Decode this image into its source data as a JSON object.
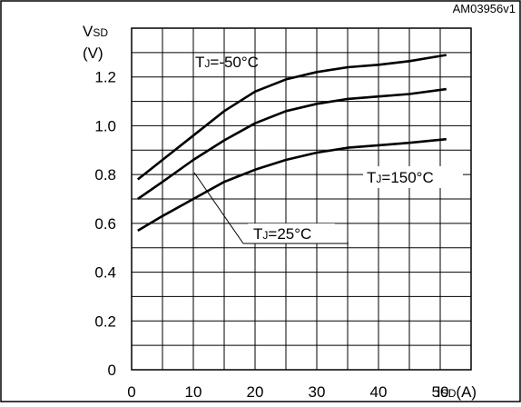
{
  "doc_id": "AM03956v1",
  "chart_data": {
    "type": "line",
    "y_axis": {
      "symbol": "V",
      "subscript": "SD",
      "unit": "(V)",
      "ticks": [
        "0",
        "0.2",
        "0.4",
        "0.6",
        "0.8",
        "1.0",
        "1.2"
      ],
      "ylim": [
        0,
        1.4
      ]
    },
    "x_axis": {
      "symbol": "I",
      "subscript": "SD",
      "unit": "(A)",
      "ticks": [
        "0",
        "10",
        "20",
        "30",
        "40",
        "50"
      ],
      "xlim": [
        0,
        55
      ]
    },
    "grid": true,
    "series": [
      {
        "name": "TJ=-50°C",
        "x": [
          1,
          5,
          10,
          15,
          20,
          25,
          30,
          35,
          40,
          45,
          51
        ],
        "y": [
          0.78,
          0.86,
          0.96,
          1.06,
          1.14,
          1.19,
          1.22,
          1.24,
          1.25,
          1.265,
          1.29
        ]
      },
      {
        "name": "TJ=25°C",
        "x": [
          1,
          5,
          10,
          15,
          20,
          25,
          30,
          35,
          40,
          45,
          51
        ],
        "y": [
          0.7,
          0.77,
          0.86,
          0.94,
          1.01,
          1.06,
          1.09,
          1.11,
          1.12,
          1.13,
          1.15
        ]
      },
      {
        "name": "TJ=150°C",
        "x": [
          1,
          5,
          10,
          15,
          20,
          25,
          30,
          35,
          40,
          45,
          51
        ],
        "y": [
          0.57,
          0.63,
          0.7,
          0.77,
          0.82,
          0.86,
          0.89,
          0.91,
          0.92,
          0.93,
          0.945
        ]
      }
    ],
    "annotations": [
      {
        "prefix": "T",
        "subscript": "J",
        "value": "=-50°C"
      },
      {
        "prefix": "T",
        "subscript": "J",
        "value": "=25°C"
      },
      {
        "prefix": "T",
        "subscript": "J",
        "value": "=150°C"
      }
    ]
  }
}
